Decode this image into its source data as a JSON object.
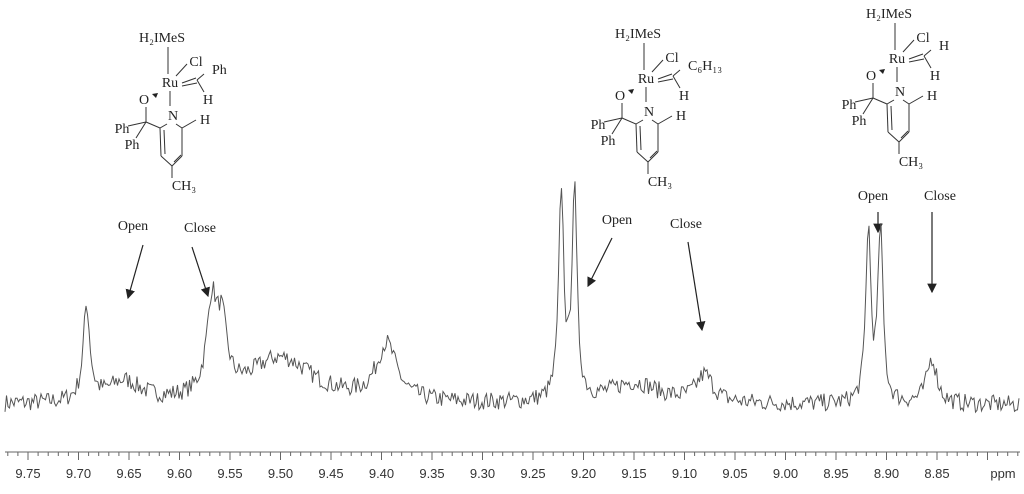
{
  "chart_data": {
    "type": "line",
    "title": "",
    "xlabel": "ppm",
    "ylabel": "",
    "x_reversed": true,
    "xlim": [
      9.773,
      8.768
    ],
    "ylim": [
      -0.1,
      1.1
    ],
    "grid": false,
    "line_color": "#555555",
    "x_ticks": [
      "9.75",
      "9.70",
      "9.65",
      "9.60",
      "9.55",
      "9.50",
      "9.45",
      "9.40",
      "9.35",
      "9.30",
      "9.25",
      "9.20",
      "9.15",
      "9.10",
      "9.05",
      "9.00",
      "8.95",
      "8.90",
      "8.85"
    ],
    "peaks": [
      {
        "ppm": 9.692,
        "intensity": 0.45,
        "width": 0.004
      },
      {
        "ppm": 9.655,
        "intensity": 0.1,
        "width": 0.02
      },
      {
        "ppm": 9.568,
        "intensity": 0.42,
        "width": 0.006
      },
      {
        "ppm": 9.558,
        "intensity": 0.3,
        "width": 0.006
      },
      {
        "ppm": 9.5,
        "intensity": 0.22,
        "width": 0.04
      },
      {
        "ppm": 9.395,
        "intensity": 0.27,
        "width": 0.012
      },
      {
        "ppm": 9.222,
        "intensity": 1.0,
        "width": 0.003
      },
      {
        "ppm": 9.209,
        "intensity": 1.0,
        "width": 0.003
      },
      {
        "ppm": 9.15,
        "intensity": 0.1,
        "width": 0.03
      },
      {
        "ppm": 9.08,
        "intensity": 0.13,
        "width": 0.01
      },
      {
        "ppm": 8.918,
        "intensity": 0.83,
        "width": 0.003
      },
      {
        "ppm": 8.906,
        "intensity": 0.83,
        "width": 0.003
      },
      {
        "ppm": 8.855,
        "intensity": 0.22,
        "width": 0.006
      }
    ],
    "annotations": [
      {
        "text": "Open",
        "target_ppm": 9.665
      },
      {
        "text": "Close",
        "target_ppm": 9.59
      },
      {
        "text": "Open",
        "target_ppm": 9.205
      },
      {
        "text": "Close",
        "target_ppm": 9.085
      },
      {
        "text": "Open",
        "target_ppm": 8.91
      },
      {
        "text": "Close",
        "target_ppm": 8.85
      }
    ],
    "structures": [
      {
        "ligand": "H₂IMeS",
        "cl": "Cl",
        "metal": "Ru",
        "carbene_substituent": "Ph",
        "carbene_h": "H",
        "oxygen": "O",
        "nitrogen": "N",
        "ph1": "Ph",
        "ph2": "Ph",
        "pyridine_h": "H",
        "methyl": "CH₃"
      },
      {
        "ligand": "H₂IMeS",
        "cl": "Cl",
        "metal": "Ru",
        "carbene_substituent": "C₆H₁₃",
        "carbene_h": "H",
        "oxygen": "O",
        "nitrogen": "N",
        "ph1": "Ph",
        "ph2": "Ph",
        "pyridine_h": "H",
        "methyl": "CH₃"
      },
      {
        "ligand": "H₂IMeS",
        "cl": "Cl",
        "metal": "Ru",
        "carbene_substituent": "H",
        "carbene_h": "H",
        "oxygen": "O",
        "nitrogen": "N",
        "ph1": "Ph",
        "ph2": "Ph",
        "pyridine_h": "H",
        "methyl": "CH₃"
      }
    ]
  }
}
